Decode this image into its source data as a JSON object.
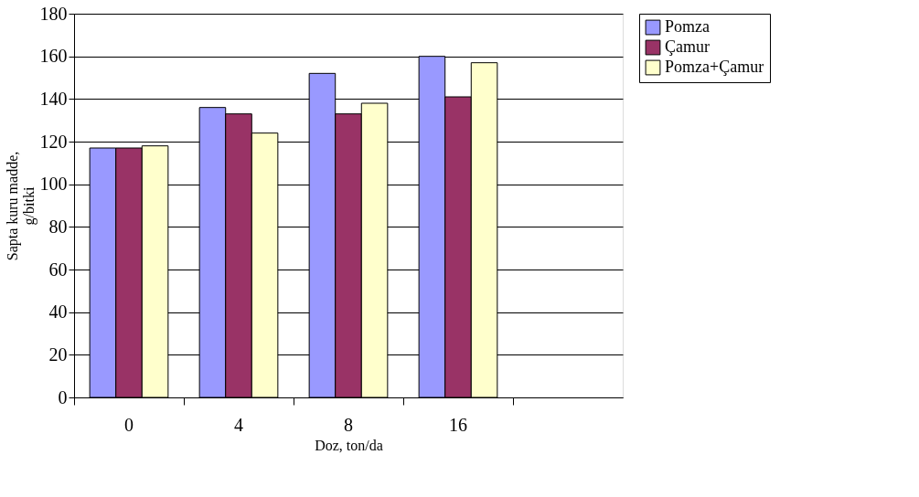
{
  "chart_data": {
    "type": "bar",
    "xlabel": "Doz, ton/da",
    "ylabel": "Sapta kuru madde, g/bitki",
    "categories": [
      "0",
      "4",
      "8",
      "16",
      null
    ],
    "series": [
      {
        "name": "Pomza",
        "color": "#9999ff",
        "values": [
          117,
          136,
          152,
          160,
          null
        ]
      },
      {
        "name": "Çamur",
        "color": "#993366",
        "values": [
          117,
          133,
          133,
          141,
          null
        ]
      },
      {
        "name": "Pomza+Çamur",
        "color": "#ffffcc",
        "values": [
          118,
          124,
          138,
          157,
          null
        ]
      }
    ],
    "ylim": [
      0,
      180
    ],
    "yticks": [
      0,
      20,
      40,
      60,
      80,
      100,
      120,
      140,
      160,
      180
    ],
    "grid": "y",
    "legend": "right"
  }
}
